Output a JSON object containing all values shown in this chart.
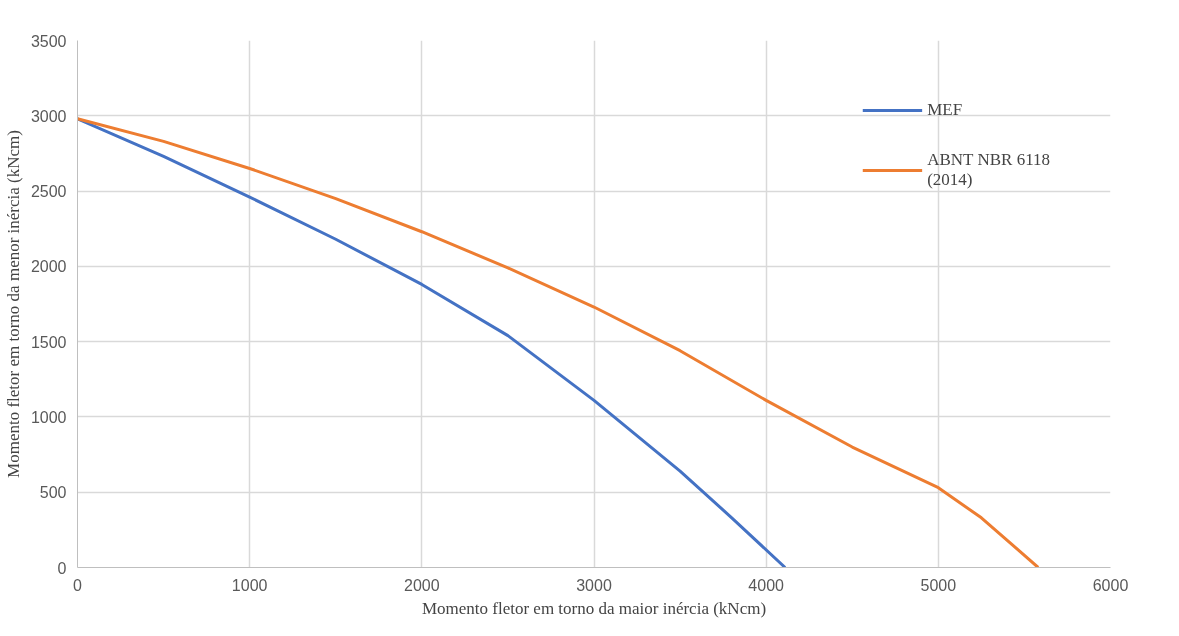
{
  "chart_data": {
    "type": "line",
    "xlabel": "Momento fletor em torno da maior inércia (kNcm)",
    "ylabel": "Momento fletor em torno da menor inércia (kNcm)",
    "xlim": [
      0,
      6000
    ],
    "ylim": [
      0,
      3500
    ],
    "xticks": [
      0,
      1000,
      2000,
      3000,
      4000,
      5000,
      6000
    ],
    "yticks": [
      0,
      500,
      1000,
      1500,
      2000,
      2500,
      3000,
      3500
    ],
    "grid": true,
    "legend": "top right",
    "line_style": "solid",
    "marker": "none",
    "series": [
      {
        "name": "MEF",
        "color": "#4472c4",
        "x": [
          0,
          500,
          1000,
          1500,
          2000,
          2500,
          3000,
          3500,
          3800,
          4110
        ],
        "values": [
          2980,
          2730,
          2460,
          2180,
          1880,
          1540,
          1110,
          640,
          330,
          0
        ]
      },
      {
        "name": "ABNT NBR 6118\n(2014)",
        "color": "#ed7d31",
        "x": [
          0,
          500,
          1000,
          1500,
          2000,
          2500,
          3000,
          3500,
          4000,
          4500,
          5000,
          5250,
          5580
        ],
        "values": [
          2980,
          2830,
          2650,
          2450,
          2230,
          1990,
          1730,
          1440,
          1110,
          800,
          530,
          330,
          0
        ]
      }
    ]
  }
}
